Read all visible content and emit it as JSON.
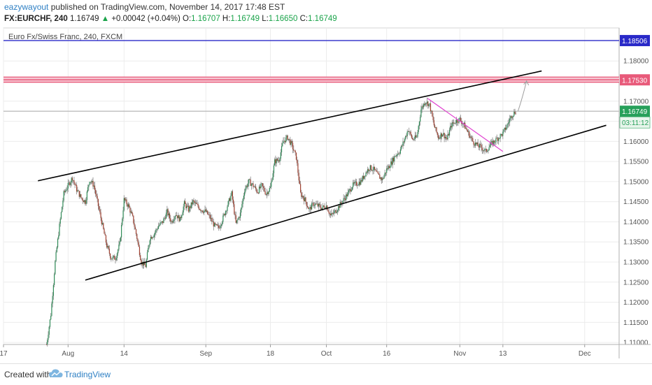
{
  "header": {
    "author": "eazywayout",
    "published": "published on TradingView.com, November 14, 2017 17:48 EST",
    "symbol": "FX:EURCHF, 240",
    "last": "1.16749",
    "change_arrow": "▲",
    "change": "+0.00042 (+0.04%)",
    "open_label": "O:",
    "open": "1.16707",
    "high_label": "H:",
    "high": "1.16749",
    "low_label": "L:",
    "low": "1.16650",
    "close_label": "C:",
    "close": "1.16749"
  },
  "footer": {
    "created_with": "Created with",
    "brand": "TradingView",
    "logo_icon": "tradingview-cloud-icon"
  },
  "chart_data": {
    "type": "candlestick",
    "title": "Euro Fx/Swiss Franc, 240, FXCM",
    "ylim": [
      1.1095,
      1.1882
    ],
    "y_ticks": [
      "1.18000",
      "1.17500",
      "1.17000",
      "1.16500",
      "1.16000",
      "1.15500",
      "1.15000",
      "1.14500",
      "1.14000",
      "1.13500",
      "1.13000",
      "1.12500",
      "1.12000",
      "1.11500",
      "1.11000"
    ],
    "x_ticks": [
      {
        "label": "17",
        "t": 0
      },
      {
        "label": "Aug",
        "t": 15
      },
      {
        "label": "14",
        "t": 28
      },
      {
        "label": "Sep",
        "t": 47
      },
      {
        "label": "18",
        "t": 62
      },
      {
        "label": "Oct",
        "t": 75
      },
      {
        "label": "16",
        "t": 89
      },
      {
        "label": "Nov",
        "t": 106
      },
      {
        "label": "13",
        "t": 116
      },
      {
        "label": "Dec",
        "t": 135
      }
    ],
    "xlim": [
      0,
      143
    ],
    "last_t": 119,
    "candle_spacing": 0.2,
    "price_path": [
      [
        10,
        1.1095
      ],
      [
        11,
        1.117
      ],
      [
        12,
        1.13
      ],
      [
        13,
        1.139
      ],
      [
        14,
        1.147
      ],
      [
        15,
        1.149
      ],
      [
        16,
        1.151
      ],
      [
        17,
        1.148
      ],
      [
        18,
        1.146
      ],
      [
        19,
        1.145
      ],
      [
        20,
        1.1505
      ],
      [
        21,
        1.149
      ],
      [
        22,
        1.144
      ],
      [
        23,
        1.139
      ],
      [
        24,
        1.134
      ],
      [
        25,
        1.131
      ],
      [
        26,
        1.131
      ],
      [
        27,
        1.1345
      ],
      [
        28,
        1.1455
      ],
      [
        29,
        1.144
      ],
      [
        30,
        1.141
      ],
      [
        31,
        1.136
      ],
      [
        32,
        1.13
      ],
      [
        33,
        1.129
      ],
      [
        34,
        1.136
      ],
      [
        35,
        1.137
      ],
      [
        36,
        1.139
      ],
      [
        37,
        1.14
      ],
      [
        38,
        1.1425
      ],
      [
        39,
        1.14
      ],
      [
        40,
        1.142
      ],
      [
        41,
        1.1405
      ],
      [
        42,
        1.1445
      ],
      [
        43,
        1.143
      ],
      [
        44,
        1.145
      ],
      [
        45,
        1.144
      ],
      [
        46,
        1.143
      ],
      [
        47,
        1.1425
      ],
      [
        48,
        1.141
      ],
      [
        49,
        1.139
      ],
      [
        50,
        1.1385
      ],
      [
        51,
        1.141
      ],
      [
        52,
        1.144
      ],
      [
        53,
        1.147
      ],
      [
        54,
        1.1395
      ],
      [
        55,
        1.142
      ],
      [
        56,
        1.148
      ],
      [
        57,
        1.15
      ],
      [
        58,
        1.149
      ],
      [
        59,
        1.1475
      ],
      [
        60,
        1.149
      ],
      [
        61,
        1.147
      ],
      [
        62,
        1.1485
      ],
      [
        63,
        1.155
      ],
      [
        64,
        1.1555
      ],
      [
        65,
        1.16
      ],
      [
        66,
        1.161
      ],
      [
        67,
        1.159
      ],
      [
        68,
        1.156
      ],
      [
        69,
        1.147
      ],
      [
        70,
        1.1455
      ],
      [
        71,
        1.143
      ],
      [
        72,
        1.1445
      ],
      [
        73,
        1.144
      ],
      [
        74,
        1.1435
      ],
      [
        75,
        1.144
      ],
      [
        76,
        1.1415
      ],
      [
        77,
        1.1425
      ],
      [
        78,
        1.144
      ],
      [
        79,
        1.1455
      ],
      [
        80,
        1.147
      ],
      [
        81,
        1.149
      ],
      [
        82,
        1.1495
      ],
      [
        83,
        1.15
      ],
      [
        84,
        1.152
      ],
      [
        85,
        1.1535
      ],
      [
        86,
        1.153
      ],
      [
        87,
        1.1515
      ],
      [
        88,
        1.1505
      ],
      [
        89,
        1.153
      ],
      [
        90,
        1.1545
      ],
      [
        91,
        1.1565
      ],
      [
        92,
        1.1575
      ],
      [
        93,
        1.16
      ],
      [
        94,
        1.163
      ],
      [
        95,
        1.1605
      ],
      [
        96,
        1.161
      ],
      [
        97,
        1.168
      ],
      [
        98,
        1.17
      ],
      [
        99,
        1.169
      ],
      [
        100,
        1.164
      ],
      [
        101,
        1.161
      ],
      [
        102,
        1.162
      ],
      [
        103,
        1.1605
      ],
      [
        104,
        1.164
      ],
      [
        105,
        1.165
      ],
      [
        106,
        1.1655
      ],
      [
        107,
        1.164
      ],
      [
        108,
        1.162
      ],
      [
        109,
        1.16
      ],
      [
        110,
        1.159
      ],
      [
        111,
        1.1585
      ],
      [
        112,
        1.1575
      ],
      [
        113,
        1.159
      ],
      [
        114,
        1.16
      ],
      [
        115,
        1.161
      ],
      [
        116,
        1.162
      ],
      [
        117,
        1.164
      ],
      [
        118,
        1.1665
      ],
      [
        119,
        1.16749
      ]
    ],
    "horizontal_lines": [
      {
        "price": 1.18506,
        "color": "#2929c8",
        "label": "1.18506"
      },
      {
        "price": 1.1753,
        "color": "#e85a7a",
        "label": "1.17530",
        "band": [
          1.1747,
          1.176
        ],
        "band_color": "#f6c6d2"
      },
      {
        "price": 1.16749,
        "color": "#bdbdbd",
        "label": "1.16749",
        "label_color": "#27a05a"
      }
    ],
    "countdown": "03:11:12",
    "trendlines": [
      {
        "from": [
          8,
          1.1502
        ],
        "to": [
          125,
          1.1775
        ],
        "color": "#000000",
        "width": 1.6
      },
      {
        "from": [
          19,
          1.1255
        ],
        "to": [
          140,
          1.164
        ],
        "color": "#000000",
        "width": 1.6
      },
      {
        "from": [
          98.5,
          1.1707
        ],
        "to": [
          116,
          1.1575
        ],
        "color": "#e040d0",
        "width": 1.2
      }
    ],
    "projection": {
      "from": [
        119.5,
        1.1675
      ],
      "to": [
        121.5,
        1.175
      ],
      "color": "#9e9e9e"
    },
    "colors": {
      "up": "#2e8b57",
      "down": "#a04030",
      "wick": "#8a8a8a",
      "grid": "#ececec",
      "axis": "#555555"
    }
  }
}
